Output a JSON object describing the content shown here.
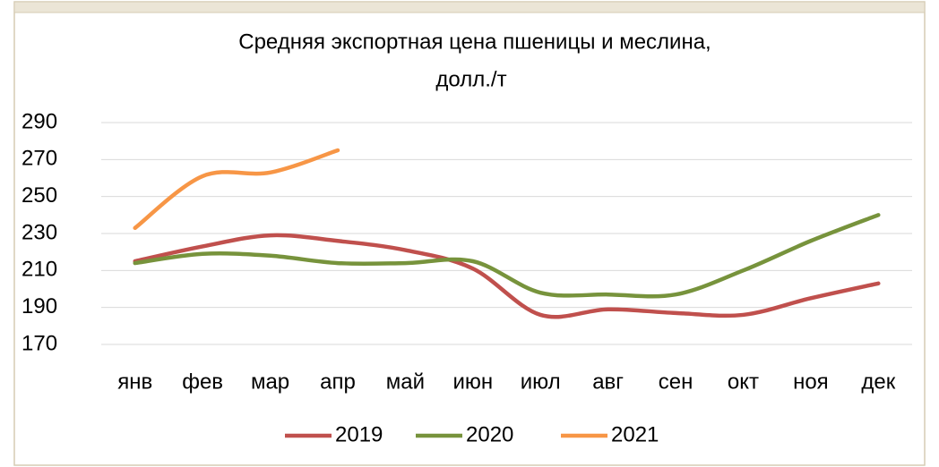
{
  "chart_data": {
    "type": "line",
    "title": [
      "Средняя  экспортная цена пшеницы и меслина,",
      "долл./т"
    ],
    "categories": [
      "янв",
      "фев",
      "мар",
      "апр",
      "май",
      "июн",
      "июл",
      "авг",
      "сен",
      "окт",
      "ноя",
      "дек"
    ],
    "series": [
      {
        "name": "2019",
        "color": "#c0504d",
        "values": [
          215,
          223,
          229,
          226,
          221,
          211,
          186,
          189,
          187,
          186,
          195,
          203
        ]
      },
      {
        "name": "2020",
        "color": "#77933c",
        "values": [
          214,
          219,
          218,
          214,
          214,
          215,
          198,
          197,
          197,
          210,
          226,
          240
        ]
      },
      {
        "name": "2021",
        "color": "#f79646",
        "values": [
          233,
          261,
          263,
          275,
          null,
          null,
          null,
          null,
          null,
          null,
          null,
          null
        ]
      }
    ],
    "ylim": [
      170,
      290
    ],
    "yticks": [
      170,
      190,
      210,
      230,
      250,
      270,
      290
    ],
    "grid": true,
    "smooth": true,
    "legend": "bottom"
  }
}
